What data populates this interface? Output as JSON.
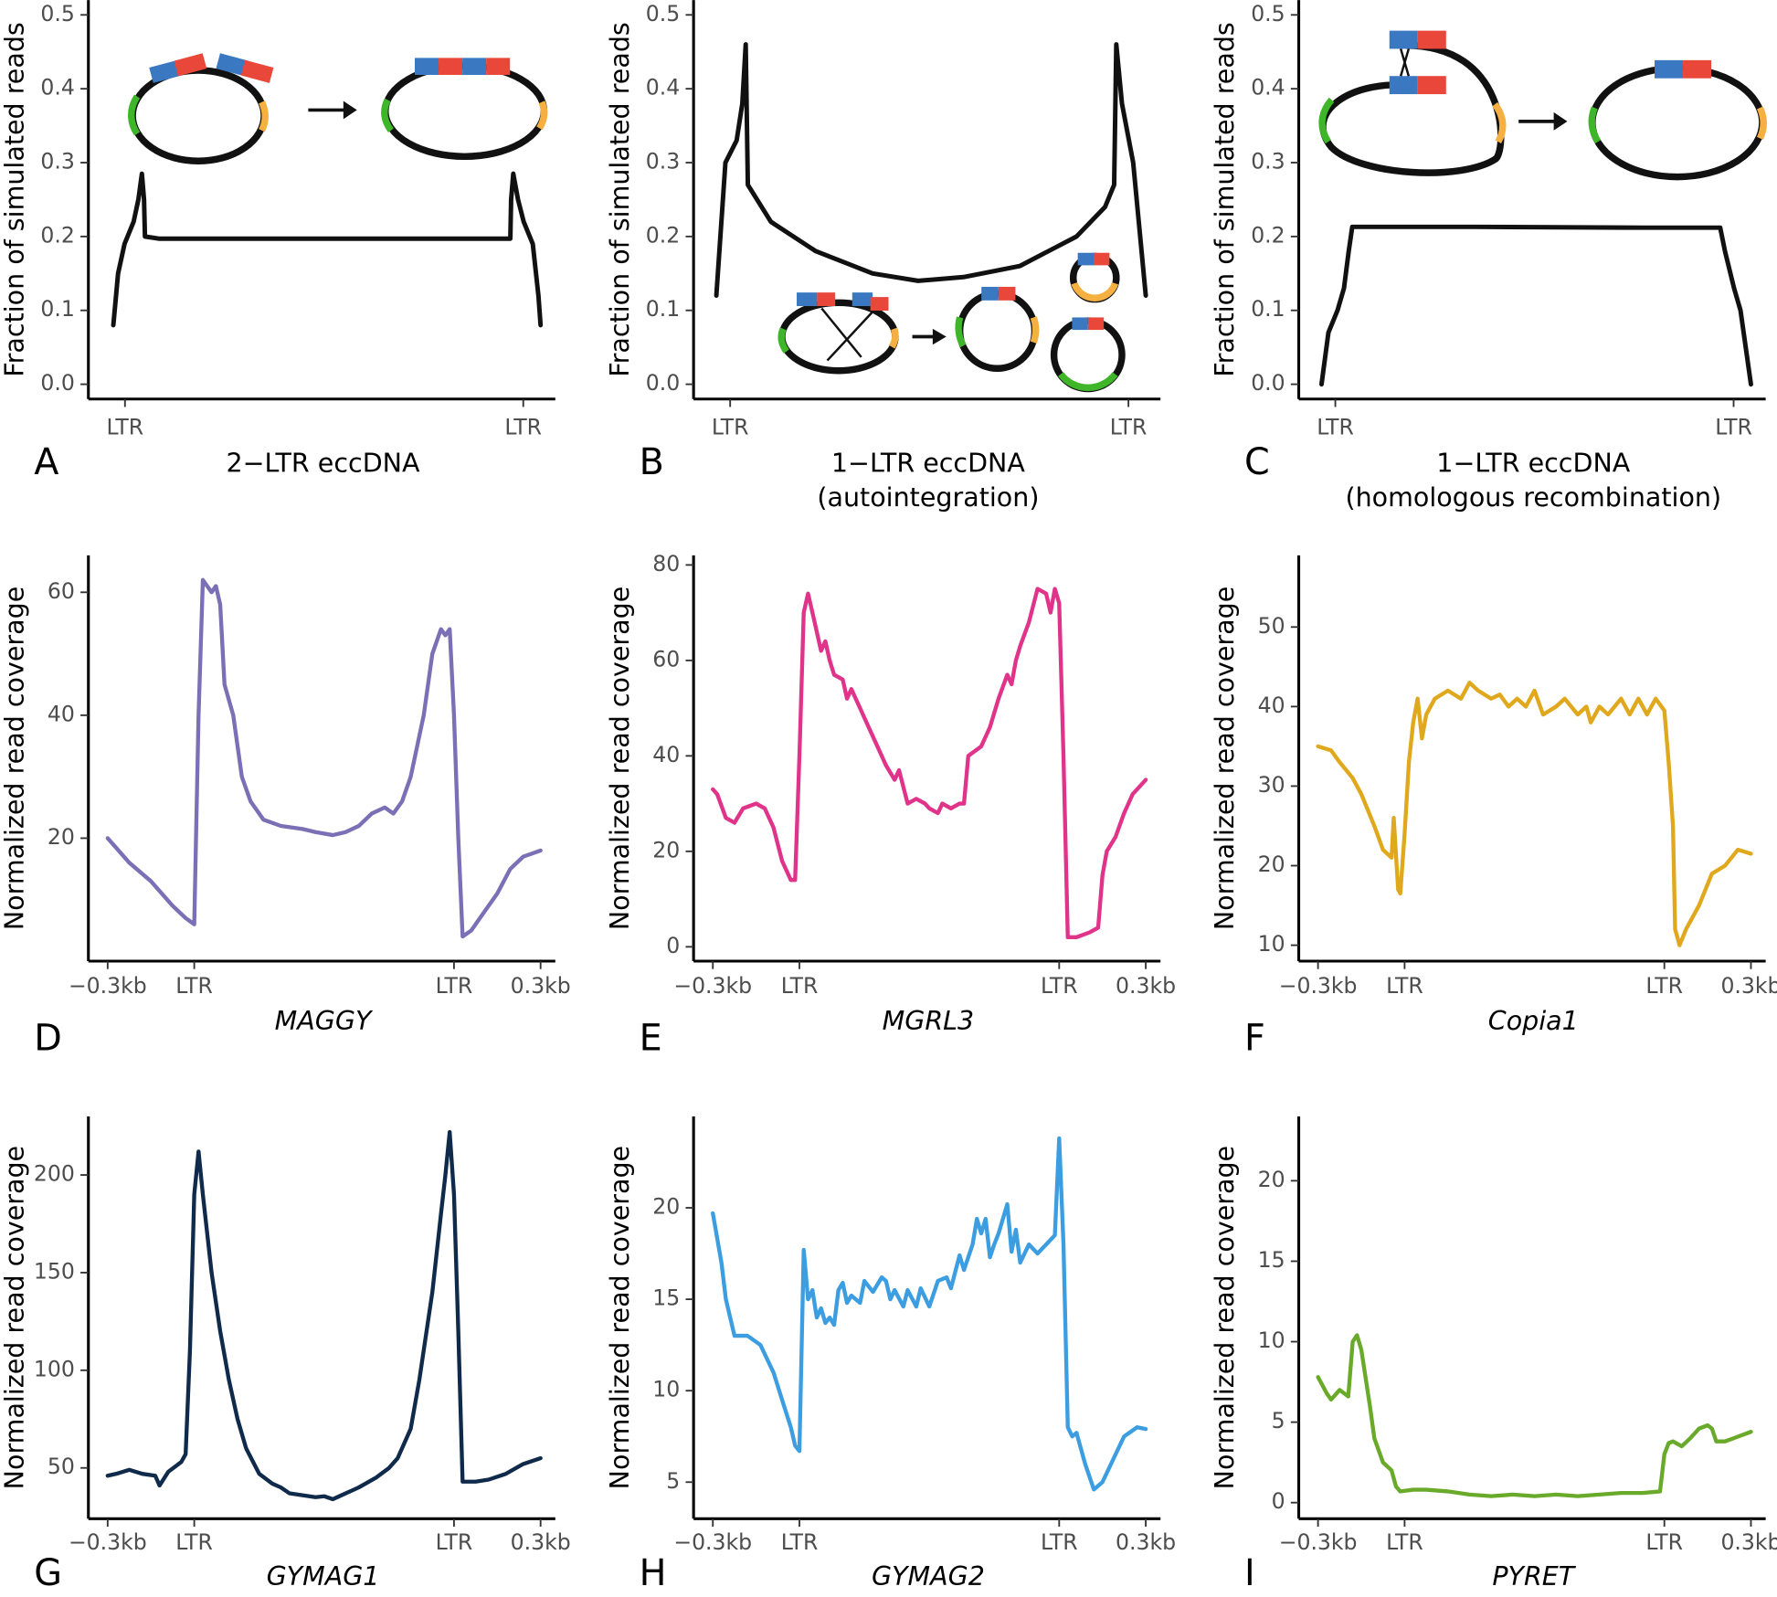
{
  "chart_data": [
    {
      "type": "line",
      "panel": "A",
      "xlabel": [
        "2−LTR eccDNA"
      ],
      "ylabel": "Fraction of simulated reads",
      "color": "#111111",
      "xlim": [
        0,
        100
      ],
      "ylim": [
        -0.02,
        0.52
      ],
      "xticks": [
        {
          "value": 4,
          "label": "LTR"
        },
        {
          "value": 96,
          "label": "LTR"
        }
      ],
      "yticks": [
        {
          "value": 0,
          "label": "0.0"
        },
        0.1,
        0.2,
        0.3,
        0.4,
        0.5
      ],
      "x": [
        1.3,
        2.4,
        3.9,
        6.0,
        7.1,
        7.9,
        8.4,
        8.6,
        11.8,
        53.7,
        93.0,
        93.2,
        93.7,
        94.8,
        96.1,
        98.2,
        99.5,
        100
      ],
      "values": [
        0.08,
        0.15,
        0.19,
        0.22,
        0.25,
        0.285,
        0.25,
        0.2,
        0.197,
        0.197,
        0.197,
        0.25,
        0.285,
        0.25,
        0.22,
        0.19,
        0.12,
        0.08
      ]
    },
    {
      "type": "line",
      "panel": "B",
      "xlabel": [
        "1−LTR eccDNA",
        "(autointegration)"
      ],
      "ylabel": "Fraction of simulated reads",
      "color": "#111111",
      "xlim": [
        0,
        100
      ],
      "ylim": [
        -0.02,
        0.52
      ],
      "xticks": [
        {
          "value": 4,
          "label": "LTR"
        },
        {
          "value": 96,
          "label": "LTR"
        }
      ],
      "yticks": [
        {
          "value": 0,
          "label": "0.0"
        },
        0.1,
        0.2,
        0.3,
        0.4,
        0.5
      ],
      "x": [
        0.8,
        2.9,
        5.5,
        6.8,
        7.6,
        8.1,
        13.4,
        23.8,
        36.9,
        47.4,
        57.9,
        70.9,
        84.0,
        90.6,
        92.7,
        93.2,
        94.5,
        97.1,
        100
      ],
      "values": [
        0.12,
        0.3,
        0.33,
        0.38,
        0.46,
        0.27,
        0.22,
        0.18,
        0.15,
        0.14,
        0.145,
        0.16,
        0.2,
        0.24,
        0.27,
        0.46,
        0.38,
        0.3,
        0.12
      ]
    },
    {
      "type": "line",
      "panel": "C",
      "xlabel": [
        "1−LTR eccDNA",
        "(homologous recombination)"
      ],
      "ylabel": "Fraction of simulated reads",
      "color": "#111111",
      "xlim": [
        0,
        100
      ],
      "ylim": [
        -0.02,
        0.52
      ],
      "xticks": [
        {
          "value": 4,
          "label": "LTR"
        },
        {
          "value": 96,
          "label": "LTR"
        }
      ],
      "yticks": [
        {
          "value": 0,
          "label": "0.0"
        },
        0.1,
        0.2,
        0.3,
        0.4,
        0.5
      ],
      "x": [
        0.8,
        2.4,
        4.5,
        6.0,
        7.1,
        7.9,
        35.9,
        75.1,
        92.9,
        94.0,
        96.1,
        97.6,
        100
      ],
      "values": [
        0,
        0.07,
        0.1,
        0.13,
        0.18,
        0.213,
        0.213,
        0.212,
        0.212,
        0.18,
        0.13,
        0.1,
        0
      ]
    },
    {
      "type": "line",
      "panel": "D",
      "xlabel": [
        "MAGGY"
      ],
      "ylabel": "Normalized read coverage",
      "color": "#7b6fb5",
      "xlim": [
        0,
        100
      ],
      "ylim": [
        0,
        66
      ],
      "xticks": [
        {
          "value": 0,
          "label": "−0.3kb"
        },
        {
          "value": 20,
          "label": "LTR"
        },
        {
          "value": 80,
          "label": "LTR"
        },
        {
          "value": 100,
          "label": "0.3kb"
        }
      ],
      "yticks": [
        20,
        40,
        60
      ],
      "x": [
        0,
        5,
        10,
        15,
        18,
        20,
        21,
        22,
        24,
        25,
        26,
        27,
        29,
        31,
        33,
        36,
        40,
        45,
        48,
        52,
        55,
        58,
        61,
        64,
        66,
        68,
        70,
        73,
        75,
        77,
        78,
        79,
        80,
        81,
        82,
        84,
        87,
        90,
        93,
        96,
        100
      ],
      "values": [
        20,
        16,
        13,
        9,
        7,
        6,
        40,
        62,
        60,
        61,
        58,
        45,
        40,
        30,
        26,
        23,
        22,
        21.5,
        21,
        20.5,
        21,
        22,
        24,
        25,
        24,
        26,
        30,
        40,
        50,
        54,
        53,
        54,
        40,
        20,
        4,
        5,
        8,
        11,
        15,
        17,
        18
      ]
    },
    {
      "type": "line",
      "panel": "E",
      "xlabel": [
        "MGRL3"
      ],
      "ylabel": "Normalized read coverage",
      "color": "#e0338a",
      "xlim": [
        0,
        100
      ],
      "ylim": [
        -3,
        82
      ],
      "xticks": [
        {
          "value": 0,
          "label": "−0.3kb"
        },
        {
          "value": 20,
          "label": "LTR"
        },
        {
          "value": 80,
          "label": "LTR"
        },
        {
          "value": 100,
          "label": "0.3kb"
        }
      ],
      "yticks": [
        0,
        20,
        40,
        60,
        80
      ],
      "x": [
        0,
        1,
        3,
        5,
        7,
        10,
        12,
        14,
        16,
        18,
        19,
        20,
        21,
        22,
        23,
        25,
        26,
        27,
        28,
        30,
        31,
        32,
        34,
        36,
        38,
        40,
        42,
        43,
        45,
        47,
        49,
        50,
        52,
        53,
        55,
        57,
        58,
        59,
        62,
        64,
        66,
        68,
        69,
        70,
        71,
        73,
        75,
        77,
        78,
        79,
        80,
        81,
        82,
        84,
        87,
        89,
        90,
        91,
        93,
        95,
        97,
        100
      ],
      "values": [
        33,
        32,
        27,
        26,
        29,
        30,
        29,
        25,
        18,
        14,
        14,
        40,
        70,
        74,
        70,
        62,
        64,
        60,
        57,
        56,
        52,
        54,
        50,
        46,
        42,
        38,
        35,
        37,
        30,
        31,
        30,
        29,
        28,
        30,
        29,
        30,
        30,
        40,
        42,
        46,
        52,
        57,
        55,
        60,
        63,
        68,
        75,
        74,
        70,
        75,
        72,
        40,
        2,
        2,
        3,
        4,
        15,
        20,
        23,
        28,
        32,
        35
      ]
    },
    {
      "type": "line",
      "panel": "F",
      "xlabel": [
        "Copia1"
      ],
      "ylabel": "Normalized read coverage",
      "color": "#e0a81c",
      "xlim": [
        0,
        100
      ],
      "ylim": [
        8,
        59
      ],
      "xticks": [
        {
          "value": 0,
          "label": "−0.3kb"
        },
        {
          "value": 20,
          "label": "LTR"
        },
        {
          "value": 80,
          "label": "LTR"
        },
        {
          "value": 100,
          "label": "0.3kb"
        }
      ],
      "yticks": [
        10,
        20,
        30,
        40,
        50
      ],
      "x": [
        0,
        3,
        5,
        8,
        10,
        13,
        15,
        17,
        17.5,
        18.5,
        19,
        20,
        21,
        22,
        23,
        24,
        25,
        27,
        30,
        33,
        35,
        37,
        40,
        42,
        44,
        46,
        48,
        50,
        52,
        55,
        57,
        60,
        62,
        63,
        65,
        67,
        70,
        72,
        74,
        76,
        78,
        80,
        81,
        82,
        82.5,
        83,
        83.5,
        85,
        88,
        91,
        94,
        97,
        100
      ],
      "values": [
        35,
        34.5,
        33,
        31,
        29,
        25,
        22,
        21,
        26,
        17,
        16.5,
        24,
        33,
        38,
        41,
        36,
        39,
        41,
        42,
        41,
        43,
        42,
        41,
        41.5,
        40,
        41,
        40,
        42,
        39,
        40,
        41,
        39,
        40,
        38,
        40,
        39,
        41,
        39,
        41,
        39,
        41,
        39.5,
        33,
        25,
        12,
        11,
        10,
        12,
        15,
        19,
        20,
        22,
        21.5
      ]
    },
    {
      "type": "line",
      "panel": "G",
      "xlabel": [
        "GYMAG1"
      ],
      "ylabel": "Normalized read coverage",
      "color": "#0f2a4a",
      "xlim": [
        0,
        100
      ],
      "ylim": [
        24,
        230
      ],
      "xticks": [
        {
          "value": 0,
          "label": "−0.3kb"
        },
        {
          "value": 20,
          "label": "LTR"
        },
        {
          "value": 80,
          "label": "LTR"
        },
        {
          "value": 100,
          "label": "0.3kb"
        }
      ],
      "yticks": [
        50,
        100,
        150,
        200
      ],
      "x": [
        0,
        2,
        5,
        8,
        11,
        12,
        14,
        17,
        18,
        19,
        20,
        21,
        22,
        24,
        26,
        28,
        30,
        32,
        35,
        38,
        40,
        42,
        45,
        48,
        50,
        52,
        55,
        58,
        62,
        65,
        67,
        70,
        72,
        75,
        77,
        78,
        79,
        80,
        81,
        82,
        85,
        88,
        92,
        96,
        100
      ],
      "values": [
        46,
        47,
        49,
        47,
        46,
        41,
        48,
        53,
        57,
        110,
        190,
        212,
        190,
        150,
        120,
        95,
        75,
        60,
        47,
        42,
        40,
        37,
        36,
        35,
        35.5,
        34,
        37,
        40,
        45,
        50,
        55,
        70,
        95,
        140,
        180,
        200,
        222,
        190,
        120,
        43,
        43,
        44,
        47,
        52,
        55
      ]
    },
    {
      "type": "line",
      "panel": "H",
      "xlabel": [
        "GYMAG2"
      ],
      "ylabel": "Normalized read coverage",
      "color": "#3c9ee0",
      "xlim": [
        0,
        100
      ],
      "ylim": [
        3,
        25
      ],
      "xticks": [
        {
          "value": 0,
          "label": "−0.3kb"
        },
        {
          "value": 20,
          "label": "LTR"
        },
        {
          "value": 80,
          "label": "LTR"
        },
        {
          "value": 100,
          "label": "0.3kb"
        }
      ],
      "yticks": [
        5,
        10,
        15,
        20
      ],
      "x": [
        0,
        2,
        3,
        5,
        8,
        11,
        14,
        16,
        18,
        19,
        20,
        21,
        22,
        23,
        24,
        25,
        26,
        27,
        28,
        29,
        30,
        31,
        32,
        34,
        35,
        37,
        39,
        40,
        41,
        42,
        44,
        45,
        47,
        48,
        50,
        52,
        54,
        55,
        57,
        58,
        60,
        61,
        62,
        63,
        64,
        65,
        66,
        68,
        69,
        70,
        71,
        73,
        75,
        77,
        79,
        80,
        81,
        82,
        83,
        84,
        86,
        88,
        90,
        92,
        95,
        98,
        100
      ],
      "values": [
        19.7,
        17,
        15,
        13,
        13,
        12.5,
        11,
        9.5,
        8,
        7,
        6.7,
        17.7,
        15,
        15.5,
        14,
        14.5,
        13.7,
        14,
        13.6,
        15.5,
        15.9,
        14.8,
        15.2,
        14.8,
        16,
        15.4,
        16.2,
        16,
        15,
        15.5,
        14.6,
        15.5,
        14.6,
        15.6,
        14.6,
        16,
        16.2,
        15.6,
        17.4,
        16.6,
        18,
        19.4,
        18.6,
        19.4,
        17.3,
        18,
        18.6,
        20.2,
        17.6,
        18.8,
        17,
        18,
        17.5,
        18,
        18.5,
        23.8,
        18,
        8,
        7.5,
        7.7,
        6,
        4.6,
        5,
        6,
        7.5,
        8,
        7.9
      ]
    },
    {
      "type": "line",
      "panel": "I",
      "xlabel": [
        "PYRET"
      ],
      "ylabel": "Normalized read coverage",
      "color": "#6aaa2a",
      "xlim": [
        0,
        100
      ],
      "ylim": [
        -1,
        24
      ],
      "xticks": [
        {
          "value": 0,
          "label": "−0.3kb"
        },
        {
          "value": 20,
          "label": "LTR"
        },
        {
          "value": 80,
          "label": "LTR"
        },
        {
          "value": 100,
          "label": "0.3kb"
        }
      ],
      "yticks": [
        0,
        5,
        10,
        15,
        20
      ],
      "x": [
        0,
        2,
        3,
        5,
        7,
        8,
        9,
        10,
        12,
        13,
        15,
        17,
        18,
        19,
        22,
        25,
        30,
        35,
        40,
        45,
        50,
        55,
        60,
        65,
        70,
        75,
        79,
        80,
        81,
        82,
        84,
        86,
        88,
        90,
        91,
        92,
        94,
        96,
        100
      ],
      "values": [
        7.8,
        6.8,
        6.4,
        7,
        6.6,
        10,
        10.4,
        9.5,
        6,
        4,
        2.5,
        2,
        1,
        0.7,
        0.8,
        0.8,
        0.7,
        0.5,
        0.4,
        0.5,
        0.4,
        0.5,
        0.4,
        0.5,
        0.6,
        0.6,
        0.7,
        3,
        3.7,
        3.8,
        3.5,
        4,
        4.6,
        4.8,
        4.6,
        3.8,
        3.8,
        4,
        4.4
      ]
    }
  ]
}
